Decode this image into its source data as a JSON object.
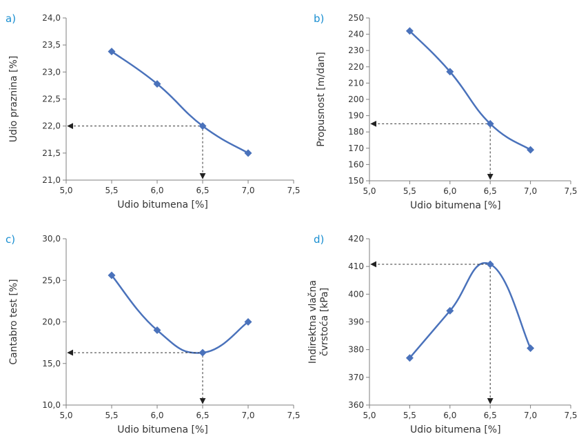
{
  "chart_data": [
    {
      "panel": "a)",
      "type": "line",
      "xlabel": "Udio bitumena [%]",
      "ylabel": [
        "Udio praznina [%]"
      ],
      "xlim": [
        5.0,
        7.5
      ],
      "ylim": [
        21.0,
        24.0
      ],
      "xticks": [
        "5,0",
        "5,5",
        "6,0",
        "6,5",
        "7,0",
        "7,5"
      ],
      "yticks": [
        "21,0",
        "21,5",
        "22,0",
        "22,5",
        "23,0",
        "23,5",
        "24,0"
      ],
      "x": [
        5.5,
        6.0,
        6.5,
        7.0
      ],
      "y": [
        23.38,
        22.78,
        22.0,
        21.5
      ],
      "optimum": {
        "x": 6.5,
        "y": 22.0,
        "arrow": "down"
      }
    },
    {
      "panel": "b)",
      "type": "line",
      "xlabel": "Udio bitumena [%]",
      "ylabel": [
        "Propusnost [m/dan]"
      ],
      "xlim": [
        5.0,
        7.5
      ],
      "ylim": [
        150,
        250
      ],
      "xticks": [
        "5,0",
        "5,5",
        "6,0",
        "6,5",
        "7,0",
        "7,5"
      ],
      "yticks": [
        "150",
        "160",
        "170",
        "180",
        "190",
        "200",
        "210",
        "220",
        "230",
        "240",
        "250"
      ],
      "x": [
        5.5,
        6.0,
        6.5,
        7.0
      ],
      "y": [
        242,
        217,
        185,
        169
      ],
      "optimum": {
        "x": 6.5,
        "y": 185,
        "arrow": "down"
      }
    },
    {
      "panel": "c)",
      "type": "line",
      "xlabel": "Udio bitumena [%]",
      "ylabel": [
        "Cantabro test [%]"
      ],
      "xlim": [
        5.0,
        7.5
      ],
      "ylim": [
        10.0,
        30.0
      ],
      "xticks": [
        "5,0",
        "5,5",
        "6,0",
        "6,5",
        "7,0",
        "7,5"
      ],
      "yticks": [
        "10,0",
        "15,0",
        "20,0",
        "25,0",
        "30,0"
      ],
      "x": [
        5.5,
        6.0,
        6.5,
        7.0
      ],
      "y": [
        25.6,
        19.0,
        16.3,
        20.0
      ],
      "optimum": {
        "x": 6.5,
        "y": 16.3,
        "arrow": "down"
      }
    },
    {
      "panel": "d)",
      "type": "line",
      "xlabel": "Udio bitumena [%]",
      "ylabel": [
        "Indirektna vlačna",
        "čvrstoća [kPa]"
      ],
      "xlim": [
        5.0,
        7.5
      ],
      "ylim": [
        360,
        420
      ],
      "xticks": [
        "5,0",
        "5,5",
        "6,0",
        "6,5",
        "7,0",
        "7,5"
      ],
      "yticks": [
        "360",
        "370",
        "380",
        "390",
        "400",
        "410",
        "420"
      ],
      "x": [
        5.5,
        6.0,
        6.5,
        7.0
      ],
      "y": [
        377,
        394,
        410.8,
        380.5
      ],
      "optimum": {
        "x": 6.5,
        "y": 410.8,
        "arrow": "down"
      }
    }
  ]
}
